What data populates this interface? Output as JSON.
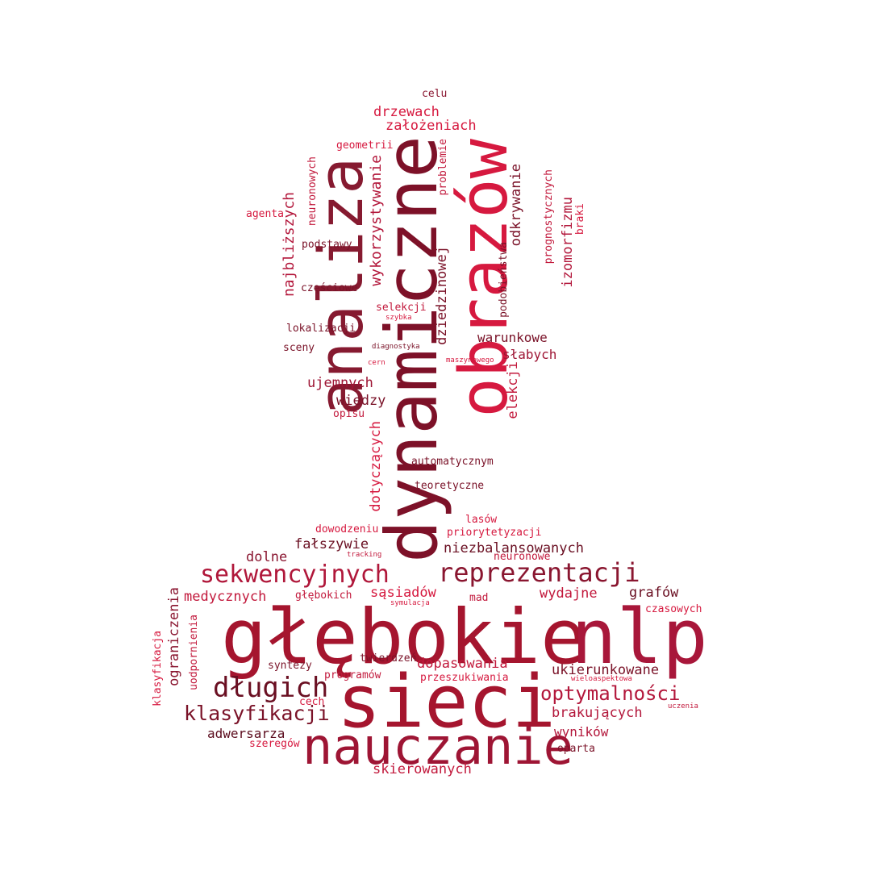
{
  "words": [
    {
      "text": "dynamiczne",
      "color": "#7d1128"
    },
    {
      "text": "obrazów",
      "color": "#d6193f"
    },
    {
      "text": "analiza",
      "color": "#861a30"
    },
    {
      "text": "głębokie",
      "color": "#a5152e"
    },
    {
      "text": "nlp",
      "color": "#a8173a"
    },
    {
      "text": "sieci",
      "color": "#a5152e"
    },
    {
      "text": "nauczanie",
      "color": "#9e1534"
    },
    {
      "text": "sekwencyjnych",
      "color": "#b0173a"
    },
    {
      "text": "reprezentacji",
      "color": "#8a1630"
    },
    {
      "text": "długich",
      "color": "#6a0f22"
    },
    {
      "text": "klasyfikacji",
      "color": "#7a1228"
    },
    {
      "text": "optymalności",
      "color": "#b3173b"
    },
    {
      "text": "dopasowania",
      "color": "#c2193c"
    },
    {
      "text": "ukierunkowane",
      "color": "#7a1228"
    },
    {
      "text": "brakujących",
      "color": "#b3173b"
    },
    {
      "text": "wyników",
      "color": "#b3173b"
    },
    {
      "text": "adwersarza",
      "color": "#5c0d1e"
    },
    {
      "text": "skierowanych",
      "color": "#c2193c"
    },
    {
      "text": "medycznych",
      "color": "#c2193c"
    },
    {
      "text": "sąsiadów",
      "color": "#d6193f"
    },
    {
      "text": "wydajne",
      "color": "#c2193c"
    },
    {
      "text": "grafów",
      "color": "#6a0f22"
    },
    {
      "text": "niezbalansowanych",
      "color": "#6a0f22"
    },
    {
      "text": "fałszywie",
      "color": "#6a0f22"
    },
    {
      "text": "dolne",
      "color": "#8a1630"
    },
    {
      "text": "drzewach",
      "color": "#d6193f"
    },
    {
      "text": "założeniach",
      "color": "#d6193f"
    },
    {
      "text": "warunkowe",
      "color": "#7a1228"
    },
    {
      "text": "słabych",
      "color": "#9e1534"
    },
    {
      "text": "ujemnych",
      "color": "#9e1534"
    },
    {
      "text": "wiedzy",
      "color": "#7a1228"
    },
    {
      "text": "celu",
      "color": "#8a1630"
    },
    {
      "text": "geometrii",
      "color": "#d6193f"
    },
    {
      "text": "agenta",
      "color": "#d6193f"
    },
    {
      "text": "podstawy",
      "color": "#7a1228"
    },
    {
      "text": "częściowe",
      "color": "#7a1228"
    },
    {
      "text": "selekcji",
      "color": "#c2193c"
    },
    {
      "text": "szybka",
      "color": "#d6193f"
    },
    {
      "text": "lokalizacji",
      "color": "#7a1228"
    },
    {
      "text": "sceny",
      "color": "#7a1228"
    },
    {
      "text": "diagnostyka",
      "color": "#7a1228"
    },
    {
      "text": "maszynowego",
      "color": "#d6193f"
    },
    {
      "text": "cern",
      "color": "#d6193f"
    },
    {
      "text": "opisu",
      "color": "#c2193c"
    },
    {
      "text": "automatycznym",
      "color": "#7a1228"
    },
    {
      "text": "teoretyczne",
      "color": "#7a1228"
    },
    {
      "text": "lasów",
      "color": "#d6193f"
    },
    {
      "text": "dowodzeniu",
      "color": "#d6193f"
    },
    {
      "text": "priorytetyzacji",
      "color": "#d6193f"
    },
    {
      "text": "tracking",
      "color": "#c2193c"
    },
    {
      "text": "neuronowe",
      "color": "#c2193c"
    },
    {
      "text": "głębokich",
      "color": "#c2193c"
    },
    {
      "text": "symulacja",
      "color": "#d6193f"
    },
    {
      "text": "mad",
      "color": "#c2193c"
    },
    {
      "text": "czasowych",
      "color": "#d6193f"
    },
    {
      "text": "twierdzeń",
      "color": "#7a1228"
    },
    {
      "text": "syntezy",
      "color": "#7a1228"
    },
    {
      "text": "programów",
      "color": "#c2193c"
    },
    {
      "text": "przeszukiwania",
      "color": "#d6193f"
    },
    {
      "text": "wieloaspektowa",
      "color": "#d6193f"
    },
    {
      "text": "cech",
      "color": "#d6193f"
    },
    {
      "text": "uczenia",
      "color": "#c2193c"
    },
    {
      "text": "szeregów",
      "color": "#d6193f"
    },
    {
      "text": "oparta",
      "color": "#7a1228"
    },
    {
      "text": "wykorzystywanie",
      "color": "#b3173b"
    },
    {
      "text": "najbliższych",
      "color": "#b3173b"
    },
    {
      "text": "neuronowych",
      "color": "#c2193c"
    },
    {
      "text": "problemie",
      "color": "#c2193c"
    },
    {
      "text": "dziedzinowej",
      "color": "#7a1228"
    },
    {
      "text": "podobieństwa",
      "color": "#7a1228"
    },
    {
      "text": "odkrywanie",
      "color": "#7a1228"
    },
    {
      "text": "prognostycznych",
      "color": "#c2193c"
    },
    {
      "text": "izomorfizmu",
      "color": "#b3173b"
    },
    {
      "text": "braki",
      "color": "#d6193f"
    },
    {
      "text": "elekcji",
      "color": "#c2193c"
    },
    {
      "text": "dotyczących",
      "color": "#d6193f"
    },
    {
      "text": "ograniczenia",
      "color": "#8a1630"
    },
    {
      "text": "uodpornienia",
      "color": "#c2193c"
    },
    {
      "text": "klasyfikacja",
      "color": "#d6193f"
    }
  ]
}
